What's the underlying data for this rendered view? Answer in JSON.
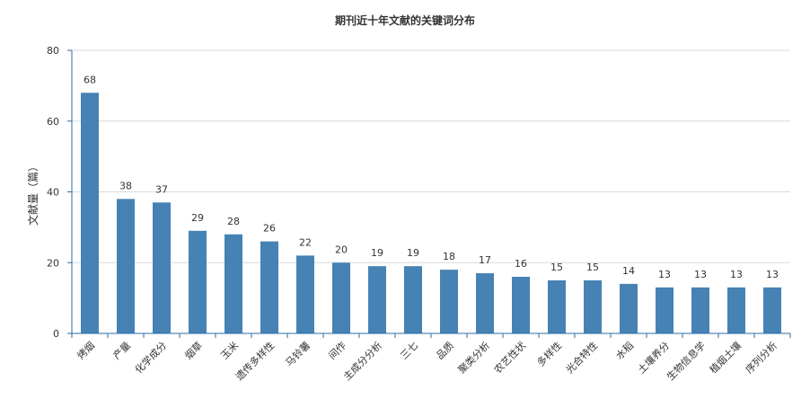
{
  "chart_data": {
    "type": "bar",
    "title": "期刊近十年文献的关键词分布",
    "ylabel": "文献量（篇）",
    "xlabel": "",
    "ylim": [
      0,
      80
    ],
    "yticks": [
      0,
      20,
      40,
      60,
      80
    ],
    "grid": true,
    "bar_color": "#4682b4",
    "categories": [
      "烤烟",
      "产量",
      "化学成分",
      "烟草",
      "玉米",
      "遗传多样性",
      "马铃薯",
      "间作",
      "主成分分析",
      "三七",
      "品质",
      "聚类分析",
      "农艺性状",
      "多样性",
      "光合特性",
      "水稻",
      "土壤养分",
      "生物信息学",
      "植烟土壤",
      "序列分析"
    ],
    "values": [
      68,
      38,
      37,
      29,
      28,
      26,
      22,
      20,
      19,
      19,
      18,
      17,
      16,
      15,
      15,
      14,
      13,
      13,
      13,
      13
    ]
  }
}
